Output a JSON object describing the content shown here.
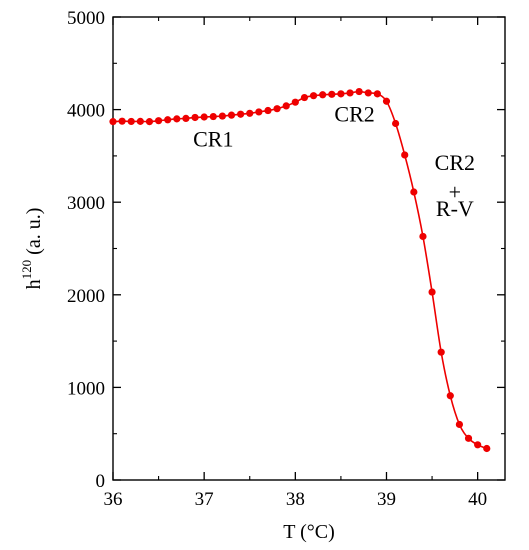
{
  "chart_data": {
    "type": "line",
    "xlabel": "T (°C)",
    "ylabel": {
      "base": "h",
      "sup": "120",
      "rest": " (a. u.)"
    },
    "xlim": [
      36,
      40.3
    ],
    "ylim": [
      0,
      5000
    ],
    "x_ticks": [
      36,
      37,
      38,
      39,
      40
    ],
    "y_ticks": [
      0,
      1000,
      2000,
      3000,
      4000,
      5000
    ],
    "grid": false,
    "series": [
      {
        "color": "#ee0000",
        "marker": "circle",
        "points": [
          {
            "x": 36.0,
            "y": 3870
          },
          {
            "x": 36.1,
            "y": 3875
          },
          {
            "x": 36.2,
            "y": 3872
          },
          {
            "x": 36.3,
            "y": 3873
          },
          {
            "x": 36.4,
            "y": 3870
          },
          {
            "x": 36.5,
            "y": 3880
          },
          {
            "x": 36.6,
            "y": 3890
          },
          {
            "x": 36.7,
            "y": 3900
          },
          {
            "x": 36.8,
            "y": 3905
          },
          {
            "x": 36.9,
            "y": 3915
          },
          {
            "x": 37.0,
            "y": 3920
          },
          {
            "x": 37.1,
            "y": 3925
          },
          {
            "x": 37.2,
            "y": 3930
          },
          {
            "x": 37.3,
            "y": 3940
          },
          {
            "x": 37.4,
            "y": 3950
          },
          {
            "x": 37.5,
            "y": 3960
          },
          {
            "x": 37.6,
            "y": 3975
          },
          {
            "x": 37.7,
            "y": 3990
          },
          {
            "x": 37.8,
            "y": 4010
          },
          {
            "x": 37.9,
            "y": 4040
          },
          {
            "x": 38.0,
            "y": 4080
          },
          {
            "x": 38.1,
            "y": 4130
          },
          {
            "x": 38.2,
            "y": 4150
          },
          {
            "x": 38.3,
            "y": 4160
          },
          {
            "x": 38.4,
            "y": 4165
          },
          {
            "x": 38.5,
            "y": 4170
          },
          {
            "x": 38.6,
            "y": 4180
          },
          {
            "x": 38.7,
            "y": 4195
          },
          {
            "x": 38.8,
            "y": 4180
          },
          {
            "x": 38.9,
            "y": 4170
          },
          {
            "x": 39.0,
            "y": 4090
          },
          {
            "x": 39.1,
            "y": 3850
          },
          {
            "x": 39.2,
            "y": 3510
          },
          {
            "x": 39.3,
            "y": 3110
          },
          {
            "x": 39.4,
            "y": 2630
          },
          {
            "x": 39.5,
            "y": 2030
          },
          {
            "x": 39.6,
            "y": 1380
          },
          {
            "x": 39.7,
            "y": 910
          },
          {
            "x": 39.8,
            "y": 600
          },
          {
            "x": 39.9,
            "y": 450
          },
          {
            "x": 40.0,
            "y": 380
          },
          {
            "x": 40.1,
            "y": 340
          }
        ]
      }
    ],
    "annotations": [
      {
        "id": "cr1",
        "text": "CR1",
        "x": 37.1,
        "y": 3600
      },
      {
        "id": "cr2",
        "text": "CR2",
        "x": 38.65,
        "y": 3870
      },
      {
        "id": "cr2b",
        "text": "CR2",
        "x": 39.75,
        "y": 3350
      },
      {
        "id": "plus",
        "text": "+",
        "x": 39.75,
        "y": 3030
      },
      {
        "id": "rv",
        "text": "R-V",
        "x": 39.75,
        "y": 2850
      }
    ]
  }
}
